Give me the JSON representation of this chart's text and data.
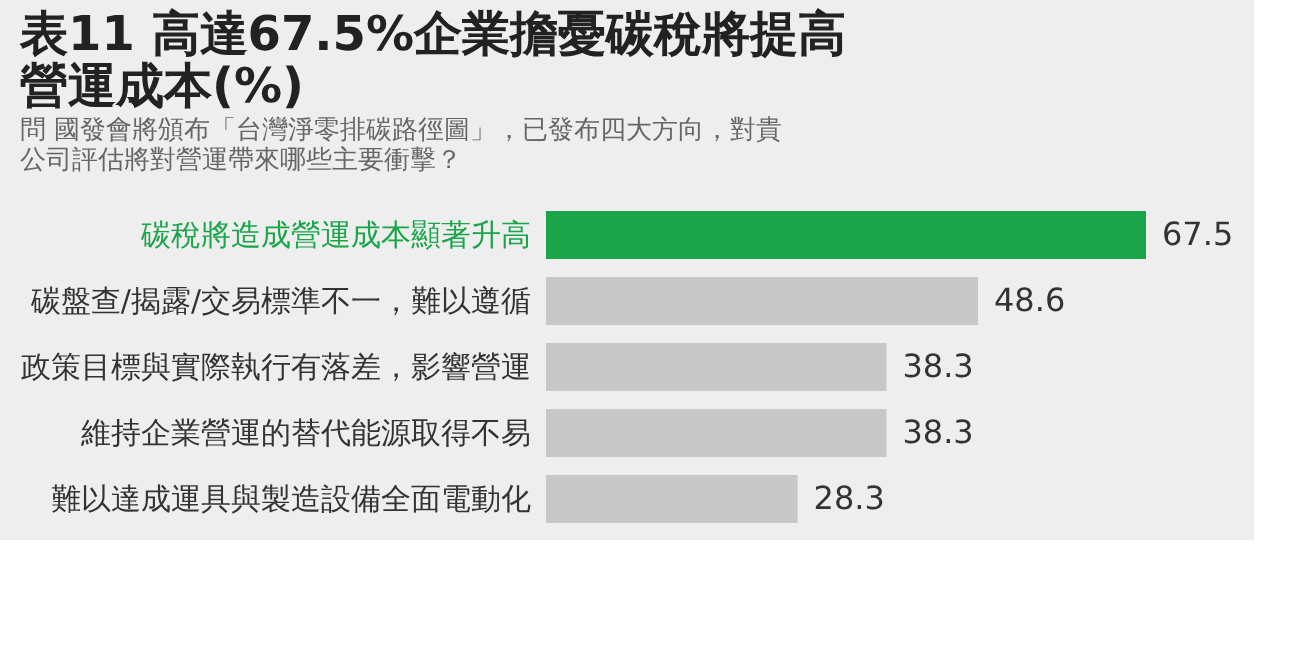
{
  "chart_data": {
    "type": "bar",
    "orientation": "horizontal",
    "title": "表11 高達67.5%企業擔憂碳稅將提高營運成本(%)",
    "subtitle": "問 國發會將頒布「台灣淨零排碳路徑圖」，已發布四大方向，對貴公司評估將對營運帶來哪些主要衝擊？",
    "categories": [
      "碳稅將造成營運成本顯著升高",
      "碳盤查/揭露/交易標準不一，難以遵循",
      "政策目標與實際執行有落差，影響營運",
      "維持企業營運的替代能源取得不易",
      "難以達成運具與製造設備全面電動化"
    ],
    "values": [
      67.5,
      48.6,
      38.3,
      38.3,
      28.3
    ],
    "colors": [
      "#1aa54b",
      "#c8c8c8",
      "#c8c8c8",
      "#c8c8c8",
      "#c8c8c8"
    ],
    "data_labels": true
  }
}
